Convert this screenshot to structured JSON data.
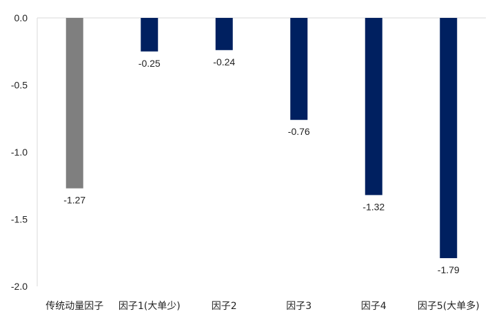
{
  "chart_data": {
    "type": "bar",
    "title": "",
    "xlabel": "",
    "ylabel": "",
    "categories": [
      "传统动量因子",
      "因子1(大单少)",
      "因子2",
      "因子3",
      "因子4",
      "因子5(大单多)"
    ],
    "values": [
      -1.27,
      -0.25,
      -0.24,
      -0.76,
      -1.32,
      -1.79
    ],
    "value_labels": [
      "-1.27",
      "-0.25",
      "-0.24",
      "-0.76",
      "-1.32",
      "-1.79"
    ],
    "bar_colors": [
      "#7f7f7f",
      "#002060",
      "#002060",
      "#002060",
      "#002060",
      "#002060"
    ],
    "ylim": [
      -2.0,
      0.0
    ],
    "yticks": [
      0.0,
      -0.5,
      -1.0,
      -1.5,
      -2.0
    ],
    "ytick_labels": [
      "0.0",
      "-0.5",
      "-1.0",
      "-1.5",
      "-2.0"
    ],
    "grid": false,
    "legend": "none"
  }
}
